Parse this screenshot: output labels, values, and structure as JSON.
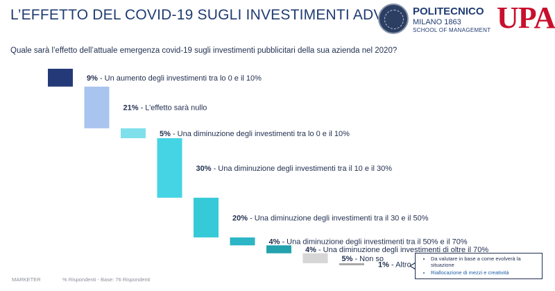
{
  "header": {
    "title": "L’EFFETTO DEL COVID-19 SUGLI INVESTIMENTI ADV",
    "polimi_name": "POLITECNICO",
    "polimi_city": "MILANO 1863",
    "polimi_school": "SCHOOL OF MANAGEMENT",
    "upa_logo": "UPA"
  },
  "question": "Quale sarà l’effetto dell’attuale emergenza covid-19 sugli investimenti pubblicitari della sua azienda nel 2020?",
  "chart_data": {
    "type": "bar",
    "subtype": "waterfall",
    "categories": [
      "Un aumento degli investimenti tra lo 0 e il 10%",
      "L’effetto sarà nullo",
      "Una diminuzione degli investimenti tra lo 0 e il 10%",
      "Una diminuzione degli investimenti tra il 10 e il 30%",
      "Una diminuzione degli investimenti tra il 30 e il 50%",
      "Una diminuzione degli investimenti tra il 50% e il 70%",
      "Una diminuzione degli investimenti di oltre il 70%",
      "Non so",
      "Altro"
    ],
    "values": [
      9,
      21,
      5,
      30,
      20,
      4,
      4,
      5,
      1
    ],
    "value_labels": [
      "9%",
      "21%",
      "5%",
      "30%",
      "20%",
      "4%",
      "4%",
      "5%",
      "1%"
    ],
    "colors": [
      "#243a78",
      "#a9c4ee",
      "#7fe0ec",
      "#45d4e4",
      "#36c9d8",
      "#2bb5c5",
      "#23a2ad",
      "#d6d6d6",
      "#a8a8a8"
    ],
    "title": "",
    "xlabel": "",
    "ylabel": ""
  },
  "footer": {
    "source": "MARKETER",
    "base": "% Rispondenti - Base: 76 Rispondenti"
  },
  "note": {
    "items": [
      "Da valutare in base a come evolverà la situazione",
      "Riallocazione di mezzi e creatività"
    ]
  }
}
